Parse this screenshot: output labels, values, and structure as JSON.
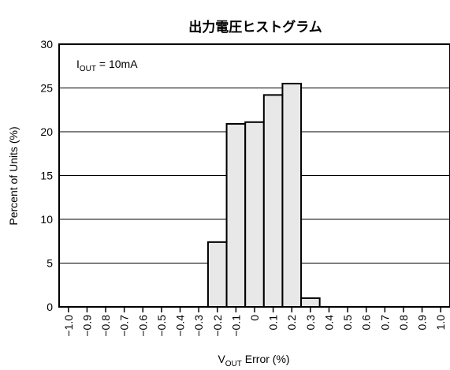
{
  "chart_data": {
    "type": "bar",
    "title": "出力電圧ヒストグラム",
    "annotation": {
      "base": "I",
      "sub": "OUT",
      "rest": " = 10mA"
    },
    "xlabel": {
      "base": "V",
      "sub": "OUT",
      "rest": " Error (%)"
    },
    "ylabel": "Percent of Units (%)",
    "ylim": [
      0,
      30
    ],
    "yticks": [
      "0",
      "5",
      "10",
      "15",
      "20",
      "25",
      "30"
    ],
    "xticks": [
      "−1.0",
      "−0.9",
      "−0.8",
      "−0.7",
      "−0.6",
      "−0.5",
      "−0.4",
      "−0.3",
      "−0.2",
      "−0.1",
      "0",
      "0.1",
      "0.2",
      "0.3",
      "0.4",
      "0.5",
      "0.6",
      "0.7",
      "0.8",
      "0.9",
      "1.0"
    ],
    "bins": [
      {
        "from": -0.25,
        "to": -0.15,
        "value": 7.4
      },
      {
        "from": -0.15,
        "to": -0.05,
        "value": 20.9
      },
      {
        "from": -0.05,
        "to": 0.05,
        "value": 21.1
      },
      {
        "from": 0.05,
        "to": 0.15,
        "value": 24.2
      },
      {
        "from": 0.15,
        "to": 0.25,
        "value": 25.5
      },
      {
        "from": 0.25,
        "to": 0.35,
        "value": 1.0
      }
    ],
    "grid": true,
    "bar_color": "#e8e8e8"
  }
}
